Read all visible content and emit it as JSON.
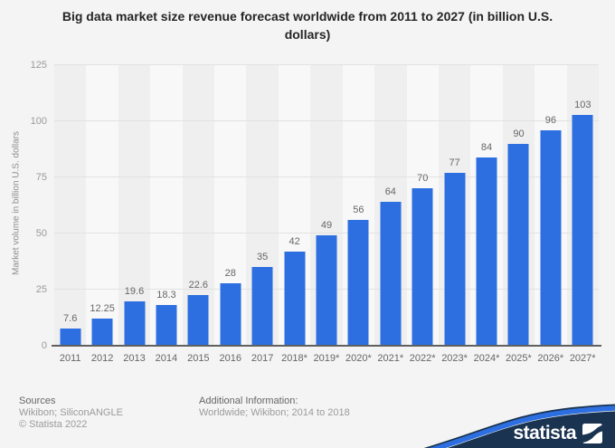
{
  "title": "Big data market size revenue forecast worldwide from 2011 to 2027 (in billion U.S. dollars)",
  "chart_data": {
    "type": "bar",
    "title": "Big data market size revenue forecast worldwide from 2011 to 2027 (in billion U.S. dollars)",
    "categories": [
      "2011",
      "2012",
      "2013",
      "2014",
      "2015",
      "2016",
      "2017",
      "2018*",
      "2019*",
      "2020*",
      "2021*",
      "2022*",
      "2023*",
      "2024*",
      "2025*",
      "2026*",
      "2027*"
    ],
    "values": [
      7.6,
      12.25,
      19.6,
      18.3,
      22.6,
      28,
      35,
      42,
      49,
      56,
      64,
      70,
      77,
      84,
      90,
      96,
      103
    ],
    "xlabel": "",
    "ylabel": "Market volume in billion U.S. dollars",
    "ylim": [
      0,
      125
    ],
    "yticks": [
      0,
      25,
      50,
      75,
      100,
      125
    ],
    "grid": true,
    "legend": false,
    "value_labels_shown": true,
    "colors": {
      "bar": "#2d6fe0",
      "stripe_odd": "#efefef",
      "stripe_even": "#f8f8f8",
      "grid": "#e2e2e2",
      "axis": "#606060"
    }
  },
  "footer": {
    "sources_heading": "Sources",
    "sources_line1": "Wikibon; SiliconANGLE",
    "sources_line2": "© Statista 2022",
    "additional_heading": "Additional Information:",
    "additional_line1": "Worldwide; Wikibon; 2014 to 2018"
  },
  "branding": {
    "logo_text": "statista",
    "navy": "#1a3350",
    "swoosh_blue": "#2d6fe0"
  }
}
